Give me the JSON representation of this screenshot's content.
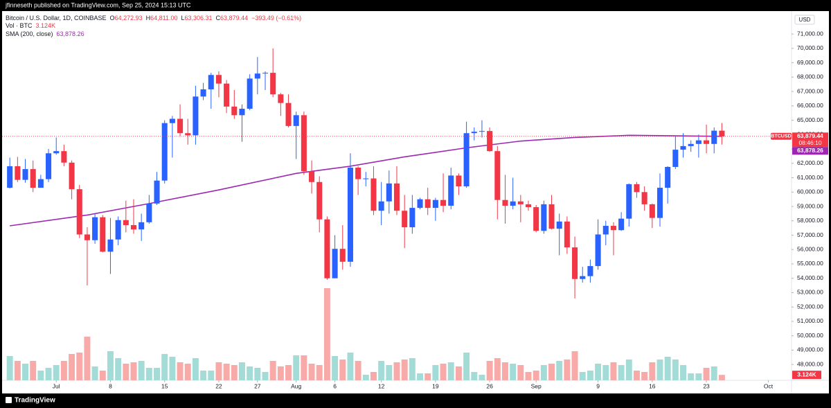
{
  "header": {
    "published": "jfinneseth published on TradingView.com, Sep 25, 2024 15:13 UTC"
  },
  "footer": {
    "brand": "TradingView"
  },
  "chart_data": {
    "type": "candlestick",
    "symbol": "Bitcoin / U.S. Dollar, 1D, COINBASE",
    "legend_ohlc": [
      {
        "label": "O",
        "value": "64,272.93"
      },
      {
        "label": "H",
        "value": "64,811.00"
      },
      {
        "label": "L",
        "value": "63,306.31"
      },
      {
        "label": "C",
        "value": "63,879.44"
      }
    ],
    "change": "−393.49 (−0.61%)",
    "currency": "USD",
    "ticker": "BTCUSD",
    "countdown": "08:46:10",
    "up_color": "#2962ff",
    "down_color": "#f23645",
    "x": [
      "2024-06-25",
      "2024-06-26",
      "2024-06-27",
      "2024-06-28",
      "2024-06-29",
      "2024-06-30",
      "2024-07-01",
      "2024-07-02",
      "2024-07-03",
      "2024-07-04",
      "2024-07-05",
      "2024-07-06",
      "2024-07-07",
      "2024-07-08",
      "2024-07-09",
      "2024-07-10",
      "2024-07-11",
      "2024-07-12",
      "2024-07-13",
      "2024-07-14",
      "2024-07-15",
      "2024-07-16",
      "2024-07-17",
      "2024-07-18",
      "2024-07-19",
      "2024-07-20",
      "2024-07-21",
      "2024-07-22",
      "2024-07-23",
      "2024-07-24",
      "2024-07-25",
      "2024-07-26",
      "2024-07-27",
      "2024-07-28",
      "2024-07-29",
      "2024-07-30",
      "2024-07-31",
      "2024-08-01",
      "2024-08-02",
      "2024-08-03",
      "2024-08-04",
      "2024-08-05",
      "2024-08-06",
      "2024-08-07",
      "2024-08-08",
      "2024-08-09",
      "2024-08-10",
      "2024-08-11",
      "2024-08-12",
      "2024-08-13",
      "2024-08-14",
      "2024-08-15",
      "2024-08-16",
      "2024-08-17",
      "2024-08-18",
      "2024-08-19",
      "2024-08-20",
      "2024-08-21",
      "2024-08-22",
      "2024-08-23",
      "2024-08-24",
      "2024-08-25",
      "2024-08-26",
      "2024-08-27",
      "2024-08-28",
      "2024-08-29",
      "2024-08-30",
      "2024-08-31",
      "2024-09-01",
      "2024-09-02",
      "2024-09-03",
      "2024-09-04",
      "2024-09-05",
      "2024-09-06",
      "2024-09-07",
      "2024-09-08",
      "2024-09-09",
      "2024-09-10",
      "2024-09-11",
      "2024-09-12",
      "2024-09-13",
      "2024-09-14",
      "2024-09-15",
      "2024-09-16",
      "2024-09-17",
      "2024-09-18",
      "2024-09-19",
      "2024-09-20",
      "2024-09-21",
      "2024-09-22",
      "2024-09-23",
      "2024-09-24",
      "2024-09-25"
    ],
    "open": [
      60300,
      61800,
      60850,
      61600,
      60300,
      60900,
      62700,
      62850,
      62050,
      60200,
      57050,
      56650,
      58250,
      55850,
      56700,
      58050,
      57700,
      57400,
      57900,
      59200,
      60800,
      64800,
      65100,
      64100,
      63950,
      66650,
      67150,
      68150,
      67550,
      65950,
      65350,
      65800,
      67900,
      68250,
      68300,
      66800,
      66200,
      64600,
      65350,
      61450,
      60700,
      58100,
      54000,
      56050,
      55150,
      61700,
      60900,
      60950,
      58700,
      59350,
      60600,
      58700,
      57550,
      58900,
      59500,
      58900,
      59450,
      59050,
      61150,
      60400,
      64100,
      64200,
      64250,
      62850,
      59450,
      59050,
      59350,
      59150,
      58950,
      57300,
      59150,
      57450,
      57950,
      56150,
      53950,
      54150,
      54850,
      57050,
      57650,
      57350,
      58150,
      60550,
      60000,
      59150,
      58200,
      60300,
      61750,
      62950,
      63200,
      63350,
      63600,
      63350,
      64272.93
    ],
    "high": [
      62400,
      62450,
      62300,
      62200,
      61200,
      63000,
      63800,
      63300,
      62200,
      60500,
      57550,
      58500,
      58400,
      58200,
      58300,
      59400,
      59500,
      58500,
      59800,
      61400,
      65000,
      65300,
      66100,
      65100,
      67400,
      67600,
      68300,
      68400,
      67800,
      67100,
      66100,
      68200,
      69400,
      68400,
      70000,
      66900,
      66800,
      65600,
      65600,
      62200,
      61100,
      58300,
      57000,
      57700,
      62700,
      61800,
      61400,
      61800,
      60700,
      61500,
      61800,
      59800,
      59800,
      59600,
      60300,
      59600,
      61300,
      61700,
      61300,
      64900,
      64500,
      65000,
      64500,
      63200,
      61200,
      61000,
      59800,
      59400,
      59100,
      59400,
      59800,
      58500,
      58300,
      56900,
      54800,
      55300,
      58100,
      58000,
      57900,
      58600,
      60600,
      60700,
      60400,
      59200,
      61300,
      61800,
      63900,
      64100,
      63600,
      64000,
      64700,
      64500,
      64811
    ],
    "low": [
      60250,
      60700,
      60650,
      60000,
      60300,
      60700,
      62600,
      61800,
      59500,
      56800,
      53500,
      56400,
      55800,
      54300,
      56300,
      57200,
      57100,
      56600,
      57800,
      59100,
      60600,
      62400,
      63900,
      63300,
      63300,
      66400,
      65800,
      66600,
      65500,
      65100,
      63500,
      65700,
      66800,
      67100,
      66600,
      65300,
      64500,
      62300,
      61200,
      59900,
      57200,
      53900,
      54000,
      54600,
      54800,
      59800,
      60400,
      58400,
      57700,
      58500,
      58400,
      56100,
      57100,
      58800,
      58400,
      58000,
      58600,
      58800,
      59800,
      60300,
      63600,
      63800,
      62800,
      58100,
      57800,
      58800,
      57900,
      58700,
      57200,
      57100,
      57400,
      55600,
      55700,
      52600,
      53700,
      53700,
      54600,
      56300,
      55600,
      57300,
      57600,
      59600,
      58700,
      57500,
      57600,
      59200,
      61600,
      62400,
      62800,
      62400,
      62700,
      62700,
      63306.31
    ],
    "close": [
      61800,
      60850,
      61600,
      60300,
      60900,
      62700,
      62850,
      62050,
      60200,
      57050,
      56650,
      58250,
      55850,
      56700,
      58050,
      57700,
      57400,
      57900,
      59200,
      60800,
      64800,
      65100,
      64100,
      63950,
      66650,
      67150,
      68150,
      67550,
      65950,
      65350,
      65800,
      67900,
      68250,
      68300,
      66800,
      66200,
      64600,
      65350,
      61450,
      60700,
      58100,
      54000,
      56050,
      55150,
      61700,
      60900,
      60950,
      58700,
      59350,
      60600,
      58700,
      57550,
      58900,
      59500,
      58900,
      59450,
      59050,
      61150,
      60400,
      64100,
      64200,
      64250,
      62850,
      59450,
      59050,
      59350,
      59150,
      58950,
      57300,
      59150,
      57450,
      57950,
      56150,
      53950,
      54150,
      54850,
      57050,
      57650,
      57350,
      58150,
      60550,
      60000,
      59150,
      58200,
      60300,
      61750,
      62950,
      63200,
      63350,
      63600,
      63350,
      64272.93,
      63879.44
    ],
    "volume": {
      "name": "Vol · BTC",
      "value_label": "3.124K",
      "up_color": "#a3dcd6",
      "down_color": "#f7aaa8",
      "ylim": [
        0,
        80000
      ],
      "values": [
        14000,
        11200,
        9600,
        11200,
        5600,
        7200,
        8800,
        11200,
        15200,
        16000,
        25200,
        8000,
        5600,
        16800,
        12800,
        9600,
        10400,
        11200,
        7200,
        7200,
        15200,
        13600,
        10400,
        9600,
        12800,
        5600,
        5600,
        10400,
        9600,
        8800,
        10400,
        8000,
        7200,
        4800,
        11200,
        8000,
        8800,
        14400,
        14400,
        9600,
        8800,
        53200,
        14000,
        12000,
        16000,
        11200,
        3200,
        4800,
        11200,
        8800,
        10400,
        12000,
        12800,
        4000,
        4000,
        8800,
        9600,
        10400,
        8000,
        16000,
        4800,
        3200,
        11200,
        12800,
        10400,
        9600,
        8800,
        4800,
        5600,
        8800,
        9600,
        11200,
        12000,
        16800,
        4800,
        5600,
        9600,
        8800,
        10400,
        8800,
        12000,
        5600,
        4800,
        10400,
        12000,
        13600,
        12000,
        8800,
        4000,
        4000,
        7200,
        8000,
        3124
      ]
    },
    "sma": {
      "name": "SMA (200, close)",
      "value_label": "63,878.26",
      "color": "#9c27b0",
      "x": [
        "2024-06-25",
        "2024-07-05",
        "2024-07-13",
        "2024-07-22",
        "2024-08-01",
        "2024-08-08",
        "2024-08-15",
        "2024-08-23",
        "2024-08-30",
        "2024-09-06",
        "2024-09-13",
        "2024-09-18",
        "2024-09-25"
      ],
      "values": [
        57650,
        58400,
        59200,
        60150,
        61300,
        61800,
        62450,
        63080,
        63550,
        63800,
        63950,
        63920,
        63878.26
      ]
    },
    "xlim": [
      "2024-06-24",
      "2024-10-04"
    ],
    "xticks": [
      {
        "value": "2024-07-01",
        "label": "Jul"
      },
      {
        "value": "2024-07-08",
        "label": "8"
      },
      {
        "value": "2024-07-15",
        "label": "15"
      },
      {
        "value": "2024-07-22",
        "label": "22"
      },
      {
        "value": "2024-07-27",
        "label": "27"
      },
      {
        "value": "2024-08-01",
        "label": "Aug"
      },
      {
        "value": "2024-08-06",
        "label": "6"
      },
      {
        "value": "2024-08-12",
        "label": "12"
      },
      {
        "value": "2024-08-19",
        "label": "19"
      },
      {
        "value": "2024-08-26",
        "label": "26"
      },
      {
        "value": "2024-09-01",
        "label": "Sep"
      },
      {
        "value": "2024-09-09",
        "label": "9"
      },
      {
        "value": "2024-09-16",
        "label": "16"
      },
      {
        "value": "2024-09-23",
        "label": "23"
      },
      {
        "value": "2024-10-01",
        "label": "Oct"
      }
    ],
    "ylim": [
      46900,
      72500
    ],
    "yticks": [
      {
        "value": 48000,
        "label": "48,000.00"
      },
      {
        "value": 49000,
        "label": "49,000.00"
      },
      {
        "value": 50000,
        "label": "50,000.00"
      },
      {
        "value": 51000,
        "label": "51,000.00"
      },
      {
        "value": 52000,
        "label": "52,000.00"
      },
      {
        "value": 53000,
        "label": "53,000.00"
      },
      {
        "value": 54000,
        "label": "54,000.00"
      },
      {
        "value": 55000,
        "label": "55,000.00"
      },
      {
        "value": 56000,
        "label": "56,000.00"
      },
      {
        "value": 57000,
        "label": "57,000.00"
      },
      {
        "value": 58000,
        "label": "58,000.00"
      },
      {
        "value": 59000,
        "label": "59,000.00"
      },
      {
        "value": 60000,
        "label": "60,000.00"
      },
      {
        "value": 61000,
        "label": "61,000.00"
      },
      {
        "value": 62000,
        "label": "62,000.00"
      },
      {
        "value": 63000,
        "label": "63,000.00"
      },
      {
        "value": 64000,
        "label": "64,000.00"
      },
      {
        "value": 65000,
        "label": "65,000.00"
      },
      {
        "value": 66000,
        "label": "66,000.00"
      },
      {
        "value": 67000,
        "label": "67,000.00"
      },
      {
        "value": 68000,
        "label": "68,000.00"
      },
      {
        "value": 69000,
        "label": "69,000.00"
      },
      {
        "value": 70000,
        "label": "70,000.00"
      },
      {
        "value": 71000,
        "label": "71,000.00"
      }
    ],
    "grid": false
  }
}
